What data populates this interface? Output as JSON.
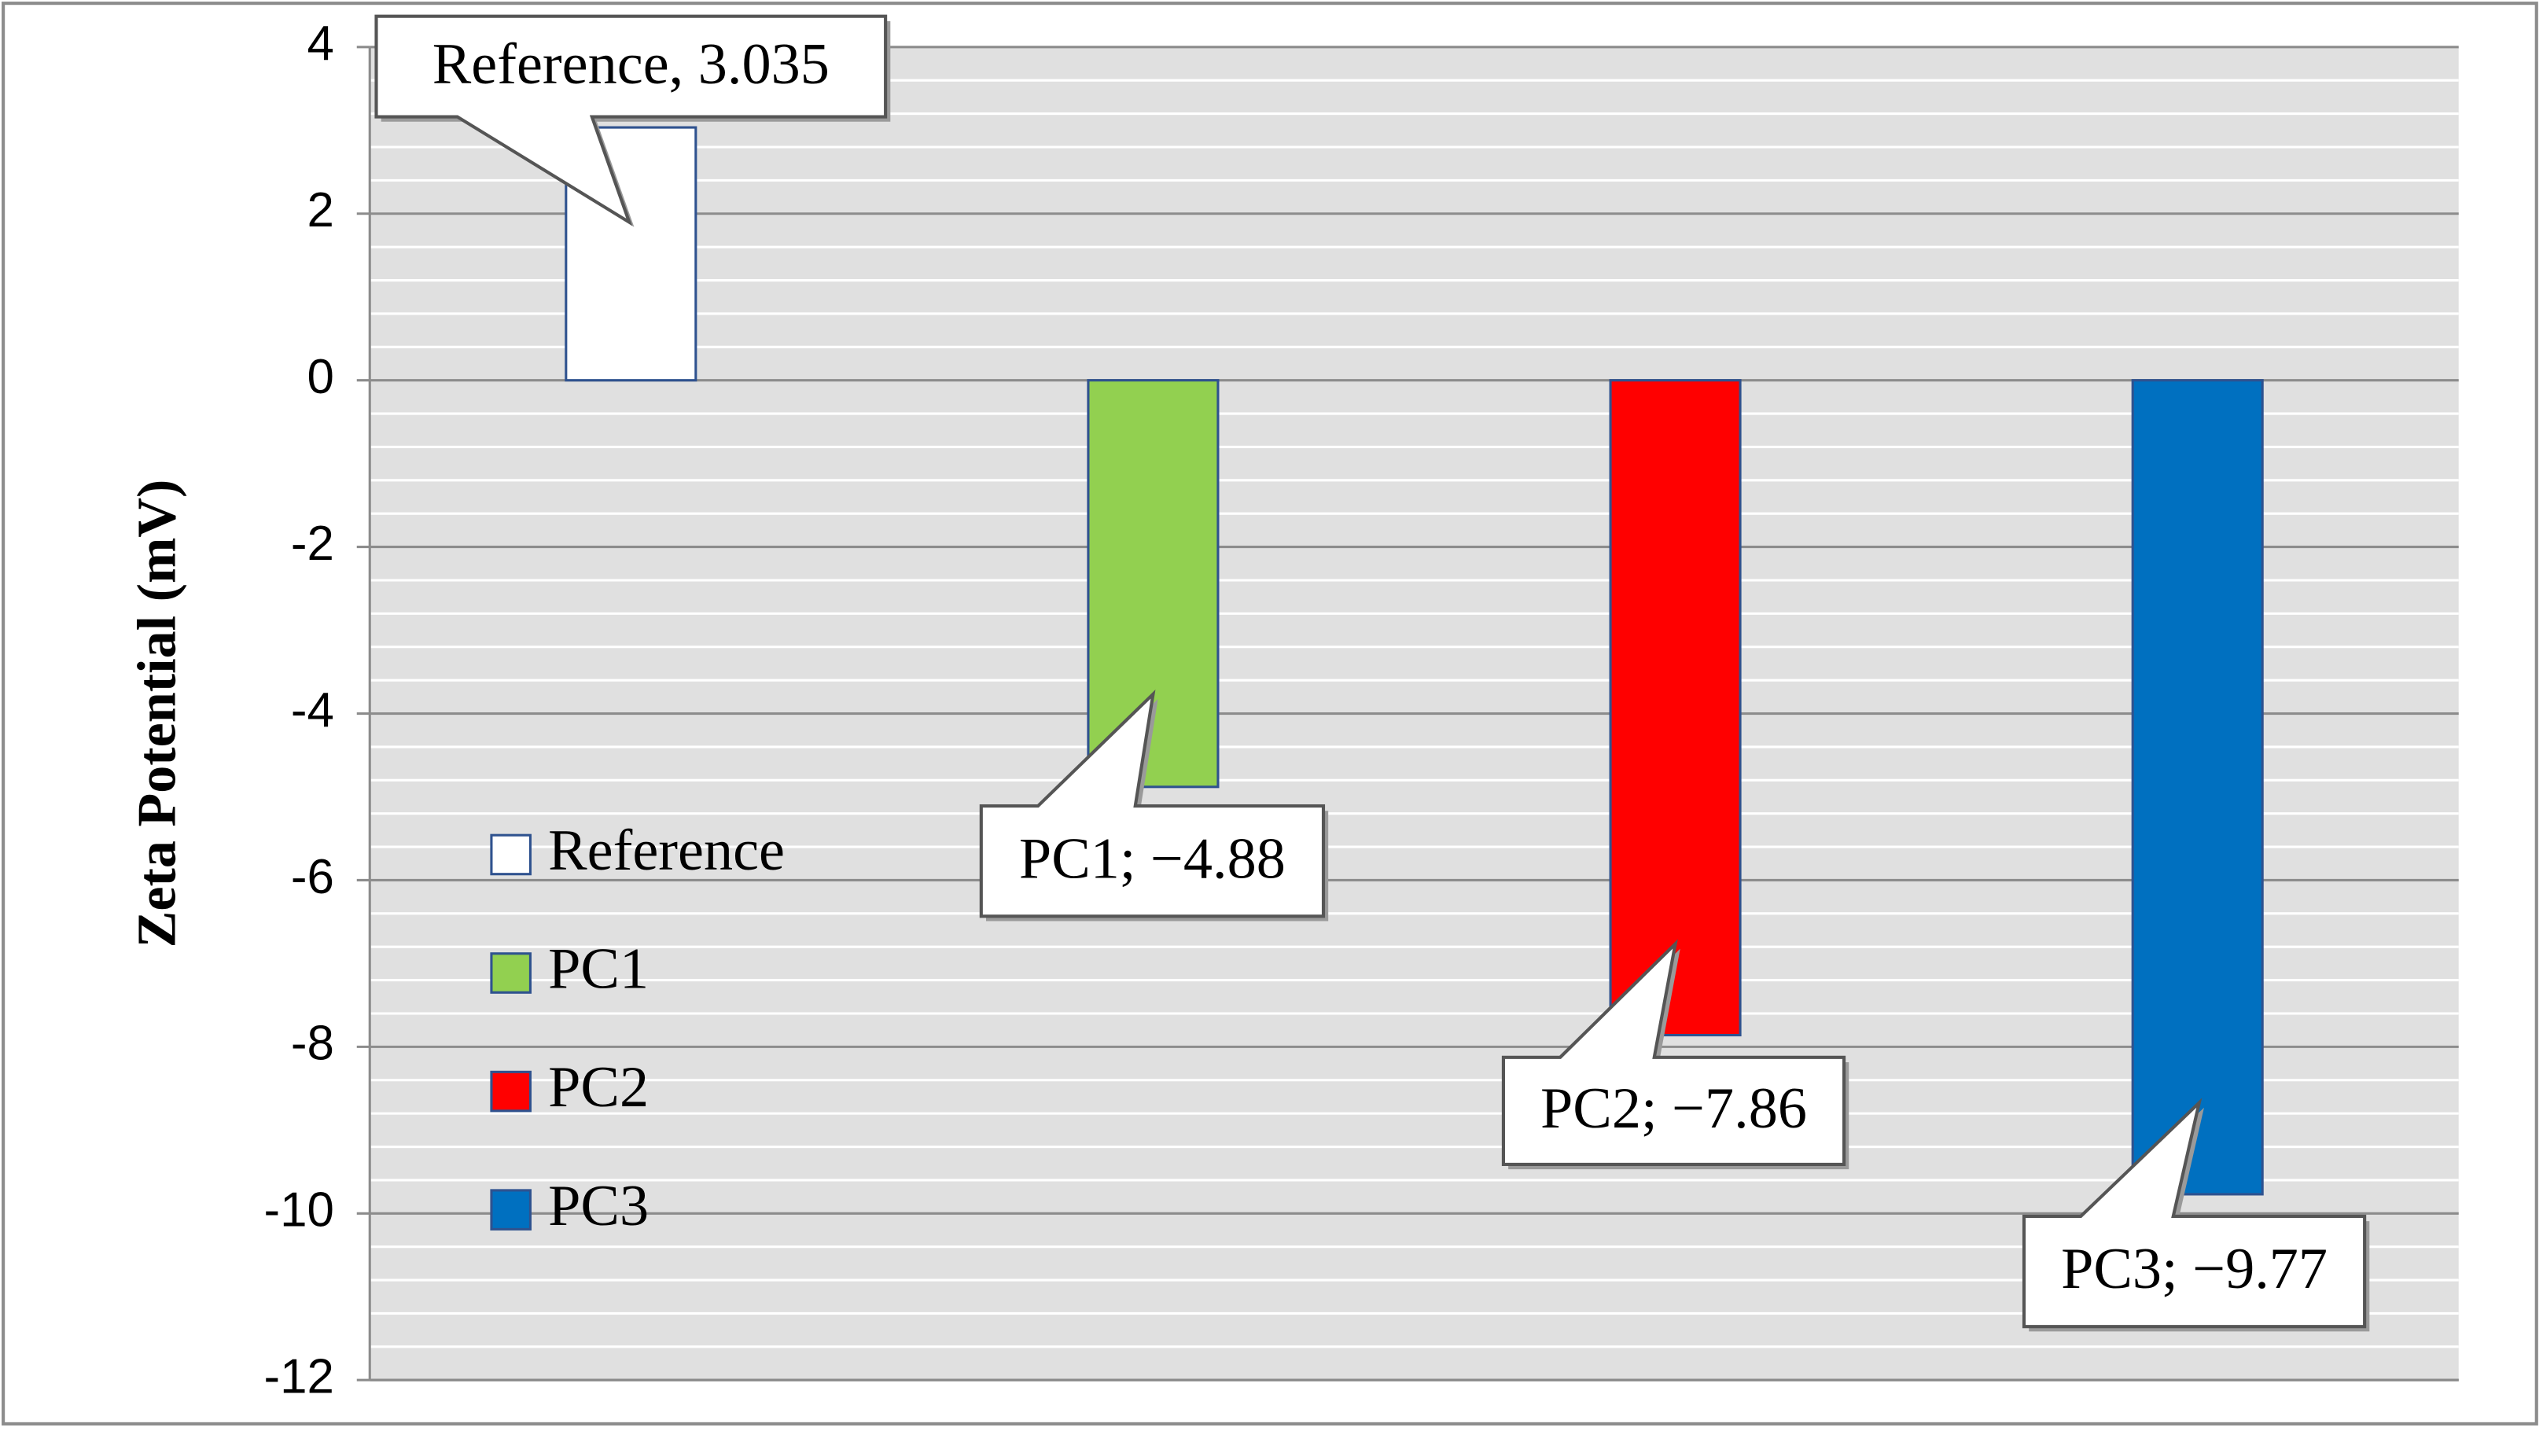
{
  "chart_data": {
    "type": "bar",
    "y_label": "Zeta Potential (mV)",
    "series": [
      {
        "name": "Reference",
        "color": "#ffffff",
        "values": [
          3.035
        ],
        "value_labels": [
          "Reference, 3.035"
        ]
      },
      {
        "name": "PC1",
        "color": "#92d050",
        "values": [
          -4.88
        ],
        "value_labels": [
          "PC1; −4.88"
        ]
      },
      {
        "name": "PC2",
        "color": "#ff0000",
        "values": [
          -7.86
        ],
        "value_labels": [
          "PC2; −7.86"
        ]
      },
      {
        "name": "PC3",
        "color": "#0070c0",
        "values": [
          -9.77
        ],
        "value_labels": [
          "PC3; −9.77"
        ]
      }
    ],
    "ylim": [
      -12,
      4
    ],
    "yticks": [
      -12,
      -10,
      -8,
      -6,
      -4,
      -2,
      0,
      2,
      4
    ],
    "grid": true,
    "legend": "left"
  }
}
